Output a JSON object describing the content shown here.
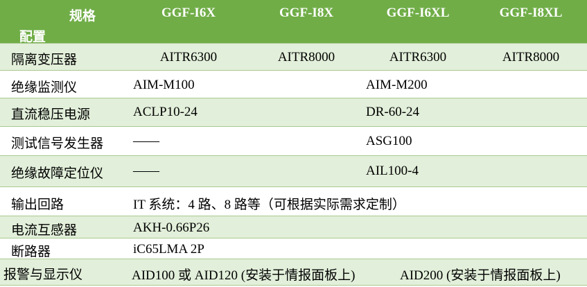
{
  "header": {
    "spec_label": "规格",
    "config_label": "配置",
    "models": [
      "GGF-I6X",
      "GGF-I8X",
      "GGF-I6XL",
      "GGF-I8XL"
    ]
  },
  "rows": [
    {
      "label": "隔离变压器",
      "values": [
        "AITR6300",
        "AITR8000",
        "AITR6300",
        "AITR8000"
      ]
    },
    {
      "label": "绝缘监测仪",
      "values": [
        "AIM-M100",
        "AIM-M200"
      ]
    },
    {
      "label": "直流稳压电源",
      "values": [
        "ACLP10-24",
        "DR-60-24"
      ]
    },
    {
      "label": "测试信号发生器",
      "values": [
        "——",
        "ASG100"
      ]
    },
    {
      "label": "绝缘故障定位仪",
      "values": [
        "——",
        "AIL100-4"
      ]
    },
    {
      "label": "输出回路",
      "values": [
        "IT 系统：4 路、8 路等（可根据实际需求定制）"
      ]
    },
    {
      "label": "电流互感器",
      "values": [
        "AKH-0.66P26"
      ]
    },
    {
      "label": "断路器",
      "values": [
        "iC65LMA 2P"
      ]
    },
    {
      "label": "报警与显示仪",
      "values": [
        "AID100 或 AID120 (安装于情报面板上)",
        "AID200 (安装于情报面板上)"
      ]
    }
  ],
  "colors": {
    "header": "#70ad47",
    "stripe": "#e2efda"
  }
}
